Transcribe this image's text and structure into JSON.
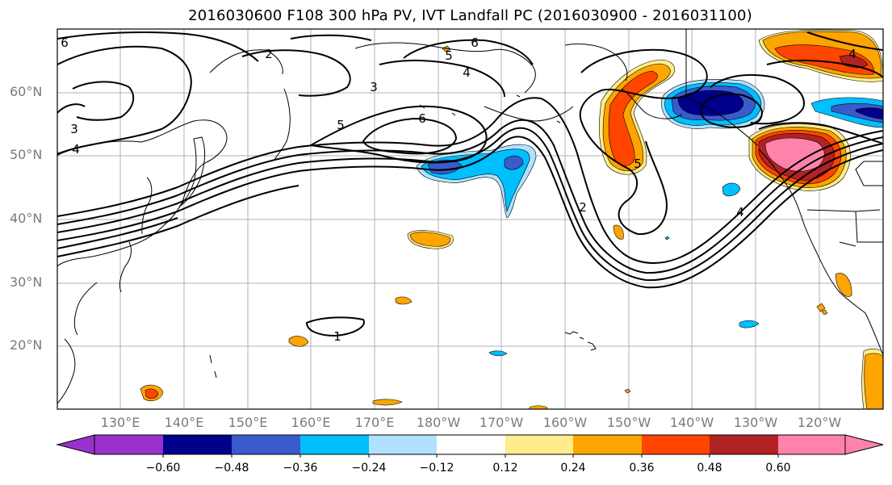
{
  "title": "2016030600 F108 300 hPa PV, IVT Landfall PC (2016030900 - 2016031100)",
  "lat_labels": [
    "60°N",
    "50°N",
    "40°N",
    "30°N",
    "20°N"
  ],
  "lon_labels": [
    "130°E",
    "140°E",
    "150°E",
    "160°E",
    "170°E",
    "180°W",
    "170°W",
    "160°W",
    "150°W",
    "140°W",
    "130°W",
    "120°W"
  ],
  "contour_labels": [
    "6",
    "6",
    "5",
    "4",
    "3",
    "2",
    "5",
    "4",
    "2",
    "4",
    "1",
    "3",
    "4",
    "5",
    "6"
  ],
  "colorbar": {
    "ticks": [
      "−0.60",
      "−0.48",
      "−0.36",
      "−0.24",
      "−0.12",
      "0.12",
      "0.24",
      "0.36",
      "0.48",
      "0.60"
    ],
    "colors": [
      "#9932cc",
      "#00008b",
      "#3a5bcc",
      "#00bfff",
      "#b0e2ff",
      "#ffffff",
      "#ffec8b",
      "#ffa500",
      "#ff4500",
      "#b22222",
      "#ff82ab"
    ]
  }
}
